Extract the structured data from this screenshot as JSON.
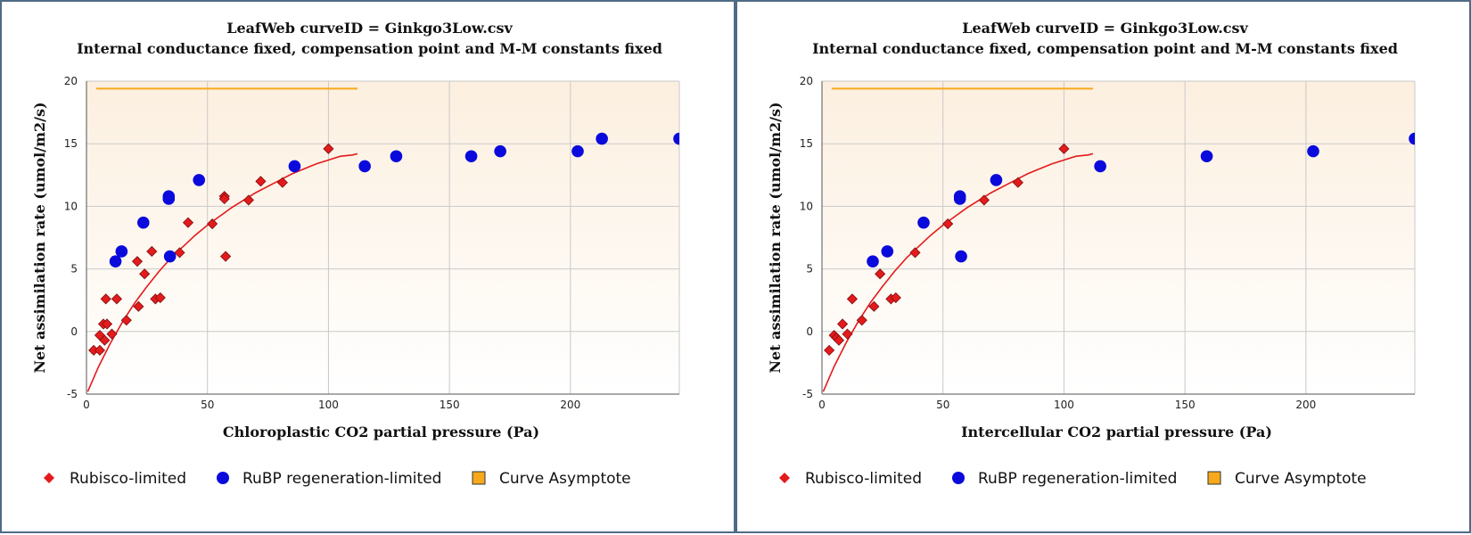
{
  "legend": {
    "rubisco": "Rubisco-limited",
    "rubp": "RuBP regeneration-limited",
    "asymptote": "Curve Asymptote"
  },
  "colors": {
    "rubisco": "#e41a1c",
    "rubp": "#0a0adc",
    "asymptote": "#f7a81b",
    "curve": "#e41a1c",
    "plot_bg_top": "#fcefdf",
    "plot_bg_bottom": "#ffffff",
    "grid": "#c9c9c9"
  },
  "chart_data": [
    {
      "type": "scatter",
      "title": "LeafWeb curveID = Ginkgo3Low.csv",
      "subtitle": "Internal conductance fixed, compensation point and M-M constants fixed",
      "xlabel": "Chloroplastic CO2 partial pressure (Pa)",
      "ylabel": "Net assimilation rate (umol/m2/s)",
      "xlim": [
        0,
        245
      ],
      "ylim": [
        -5,
        20
      ],
      "xticks": [
        0,
        50,
        100,
        150,
        200
      ],
      "yticks": [
        -5,
        0,
        5,
        10,
        15,
        20
      ],
      "grid": true,
      "legend_position": "bottom",
      "series": [
        {
          "name": "Rubisco-limited",
          "marker": "diamond",
          "points": [
            [
              3,
              -1.5
            ],
            [
              5.5,
              -1.5
            ],
            [
              5.5,
              -0.3
            ],
            [
              7,
              0.6
            ],
            [
              7.5,
              -0.7
            ],
            [
              8,
              2.6
            ],
            [
              8.5,
              0.6
            ],
            [
              10.5,
              -0.2
            ],
            [
              12.5,
              2.6
            ],
            [
              16.5,
              0.9
            ],
            [
              21,
              5.6
            ],
            [
              21.5,
              2
            ],
            [
              24,
              4.6
            ],
            [
              27,
              6.4
            ],
            [
              28.5,
              2.6
            ],
            [
              30.5,
              2.7
            ],
            [
              38.5,
              6.3
            ],
            [
              42,
              8.7
            ],
            [
              52,
              8.6
            ],
            [
              57,
              10.8
            ],
            [
              57,
              10.6
            ],
            [
              57.5,
              6
            ],
            [
              67,
              10.5
            ],
            [
              72,
              12
            ],
            [
              81,
              11.9
            ],
            [
              100,
              14.6
            ]
          ]
        },
        {
          "name": "RuBP regeneration-limited",
          "marker": "circle",
          "points": [
            [
              12,
              5.6
            ],
            [
              14.5,
              6.4
            ],
            [
              23.5,
              8.7
            ],
            [
              34,
              10.8
            ],
            [
              34,
              10.6
            ],
            [
              34.5,
              6
            ],
            [
              46.5,
              12.1
            ],
            [
              86,
              13.2
            ],
            [
              115,
              13.2
            ],
            [
              128,
              14
            ],
            [
              159,
              14
            ],
            [
              171,
              14.4
            ],
            [
              203,
              14.4
            ],
            [
              213,
              15.4
            ],
            [
              245,
              15.4
            ]
          ]
        },
        {
          "name": "Curve Asymptote",
          "type": "line",
          "x": [
            4,
            112
          ],
          "y": [
            19.4,
            19.4
          ]
        }
      ],
      "curve": {
        "name": "fit",
        "x": [
          0.5,
          5,
          10,
          15,
          20,
          25,
          30,
          35,
          40,
          45,
          50,
          55,
          60,
          65,
          70,
          75,
          80,
          85,
          90,
          95,
          100,
          105,
          110,
          112
        ],
        "y": [
          -4.8,
          -2.8,
          -0.9,
          0.8,
          2.3,
          3.6,
          4.8,
          5.9,
          6.8,
          7.7,
          8.5,
          9.2,
          9.9,
          10.5,
          11.1,
          11.6,
          12.1,
          12.6,
          13,
          13.4,
          13.7,
          14,
          14.1,
          14.2
        ]
      }
    },
    {
      "type": "scatter",
      "title": "LeafWeb curveID = Ginkgo3Low.csv",
      "subtitle": "Internal conductance fixed, compensation point and M-M constants fixed",
      "xlabel": "Intercellular CO2 partial pressure (Pa)",
      "ylabel": "Net assimilation rate (umol/m2/s)",
      "xlim": [
        0,
        245
      ],
      "ylim": [
        -5,
        20
      ],
      "xticks": [
        0,
        50,
        100,
        150,
        200
      ],
      "yticks": [
        -5,
        0,
        5,
        10,
        15,
        20
      ],
      "grid": true,
      "legend_position": "bottom",
      "series": [
        {
          "name": "Rubisco-limited",
          "marker": "diamond",
          "points": [
            [
              3,
              -1.5
            ],
            [
              5,
              -0.3
            ],
            [
              6,
              -0.5
            ],
            [
              7,
              -0.7
            ],
            [
              8.5,
              0.6
            ],
            [
              10.5,
              -0.2
            ],
            [
              12.5,
              2.6
            ],
            [
              16.5,
              0.9
            ],
            [
              21.5,
              2
            ],
            [
              24,
              4.6
            ],
            [
              28.5,
              2.6
            ],
            [
              30.5,
              2.7
            ],
            [
              38.5,
              6.3
            ],
            [
              52,
              8.6
            ],
            [
              67,
              10.5
            ],
            [
              81,
              11.9
            ],
            [
              100,
              14.6
            ]
          ]
        },
        {
          "name": "RuBP regeneration-limited",
          "marker": "circle",
          "points": [
            [
              21,
              5.6
            ],
            [
              27,
              6.4
            ],
            [
              42,
              8.7
            ],
            [
              57,
              10.8
            ],
            [
              57,
              10.6
            ],
            [
              57.5,
              6
            ],
            [
              72,
              12.1
            ],
            [
              115,
              13.2
            ],
            [
              159,
              14
            ],
            [
              203,
              14.4
            ],
            [
              245,
              15.4
            ]
          ]
        },
        {
          "name": "Curve Asymptote",
          "type": "line",
          "x": [
            4,
            112
          ],
          "y": [
            19.4,
            19.4
          ]
        }
      ],
      "curve": {
        "name": "fit",
        "x": [
          0.5,
          5,
          10,
          15,
          20,
          25,
          30,
          35,
          40,
          45,
          50,
          55,
          60,
          65,
          70,
          75,
          80,
          85,
          90,
          95,
          100,
          105,
          110,
          112
        ],
        "y": [
          -4.8,
          -2.8,
          -0.9,
          0.8,
          2.3,
          3.6,
          4.8,
          5.9,
          6.8,
          7.7,
          8.5,
          9.2,
          9.9,
          10.5,
          11.1,
          11.6,
          12.1,
          12.6,
          13,
          13.4,
          13.7,
          14,
          14.1,
          14.2
        ]
      }
    }
  ]
}
